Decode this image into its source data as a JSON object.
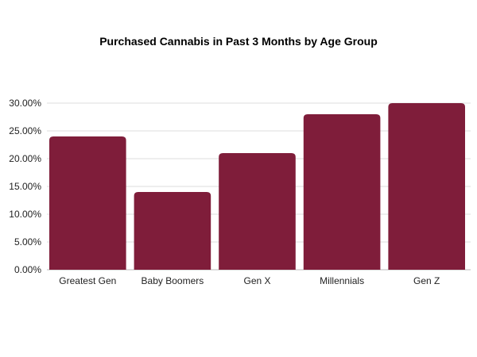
{
  "chart_data": {
    "type": "bar",
    "title": "Purchased Cannabis in Past 3 Months by Age Group",
    "categories": [
      "Greatest Gen",
      "Baby Boomers",
      "Gen X",
      "Millennials",
      "Gen Z"
    ],
    "values": [
      24,
      14,
      21,
      28,
      30
    ],
    "xlabel": "",
    "ylabel": "",
    "ylim": [
      0,
      30
    ],
    "yticks": [
      "0.00%",
      "5.00%",
      "10.00%",
      "15.00%",
      "20.00%",
      "25.00%",
      "30.00%"
    ],
    "grid": true,
    "legend": "none",
    "bar_color": "#7f1d3a",
    "grid_color": "#dcdcdc"
  }
}
